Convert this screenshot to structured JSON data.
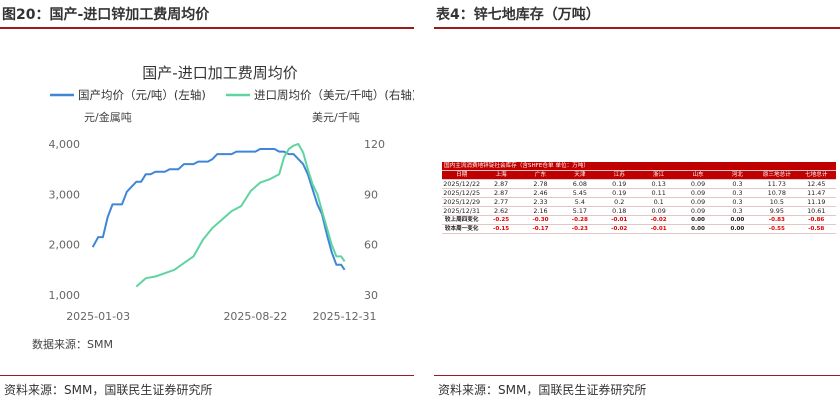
{
  "left_panel": {
    "title": "图20：国产-进口锌加工费周均价",
    "source": "资料来源：SMM，国联民生证券研究所"
  },
  "right_panel": {
    "title": "表4：锌七地库存（万吨）",
    "source": "资料来源：SMM，国联民生证券研究所"
  },
  "colors": {
    "rule": "#9c1c1c",
    "series_domestic": "#3f86d8",
    "series_import": "#5fd4a0",
    "table_header": "#c00000",
    "negative": "#e00000",
    "positive": "#19a55a"
  },
  "chart_data": {
    "type": "line",
    "title": "国产-进口加工费周均价",
    "legend_position": "top",
    "series": [
      {
        "name": "国产均价（元/吨）(左轴)",
        "axis": "left",
        "x": [
          "2024-12-26",
          "2025-01-03",
          "2025-01-10",
          "2025-01-17",
          "2025-01-24",
          "2025-02-07",
          "2025-02-14",
          "2025-02-21",
          "2025-02-28",
          "2025-03-07",
          "2025-03-14",
          "2025-03-21",
          "2025-03-28",
          "2025-04-04",
          "2025-04-11",
          "2025-04-18",
          "2025-04-25",
          "2025-05-01",
          "2025-05-09",
          "2025-05-16",
          "2025-05-23",
          "2025-05-30",
          "2025-06-06",
          "2025-06-13",
          "2025-06-20",
          "2025-06-27",
          "2025-07-04",
          "2025-07-11",
          "2025-07-18",
          "2025-07-25",
          "2025-08-01",
          "2025-08-08",
          "2025-08-15",
          "2025-08-22",
          "2025-08-29",
          "2025-09-05",
          "2025-09-12",
          "2025-09-19",
          "2025-09-26",
          "2025-10-03",
          "2025-10-10",
          "2025-10-17",
          "2025-10-24",
          "2025-10-31",
          "2025-11-07",
          "2025-11-14",
          "2025-11-21",
          "2025-11-28",
          "2025-12-05",
          "2025-12-12",
          "2025-12-19",
          "2025-12-26",
          "2025-12-31"
        ],
        "values": [
          1950,
          2150,
          2150,
          2550,
          2800,
          2800,
          3050,
          3150,
          3250,
          3250,
          3400,
          3400,
          3450,
          3450,
          3450,
          3500,
          3500,
          3500,
          3600,
          3600,
          3600,
          3650,
          3650,
          3650,
          3700,
          3800,
          3800,
          3800,
          3800,
          3850,
          3850,
          3850,
          3850,
          3850,
          3900,
          3900,
          3900,
          3900,
          3850,
          3850,
          3800,
          3800,
          3700,
          3600,
          3400,
          3100,
          2800,
          2600,
          2200,
          1850,
          1600,
          1600,
          1500
        ]
      },
      {
        "name": "进口周均价（美元/千吨）(右轴)",
        "axis": "right",
        "x": [
          "2025-02-28",
          "2025-03-14",
          "2025-03-28",
          "2025-04-11",
          "2025-04-25",
          "2025-05-09",
          "2025-05-23",
          "2025-06-06",
          "2025-06-20",
          "2025-07-04",
          "2025-07-18",
          "2025-08-01",
          "2025-08-15",
          "2025-08-29",
          "2025-09-12",
          "2025-09-26",
          "2025-10-03",
          "2025-10-10",
          "2025-10-17",
          "2025-10-24",
          "2025-10-31",
          "2025-11-07",
          "2025-11-14",
          "2025-11-21",
          "2025-11-28",
          "2025-12-05",
          "2025-12-12",
          "2025-12-19",
          "2025-12-26",
          "2025-12-31"
        ],
        "values": [
          35,
          40,
          41,
          43,
          45,
          49,
          53,
          63,
          70,
          75,
          80,
          83,
          92,
          97,
          99,
          102,
          112,
          117,
          119,
          120,
          115,
          105,
          96,
          90,
          80,
          70,
          60,
          53,
          53,
          50
        ]
      }
    ],
    "x_ticks": [
      "2025-01-03",
      "2025-08-22",
      "2025-12-31"
    ],
    "left_axis": {
      "label": "元/金属吨",
      "ticks": [
        "1,000",
        "2,000",
        "3,000",
        "4,000"
      ],
      "ylim": [
        1000,
        4000
      ]
    },
    "right_axis": {
      "label": "美元/千吨",
      "ticks": [
        "30",
        "60",
        "90",
        "120"
      ],
      "ylim": [
        30,
        120
      ]
    },
    "annotation": "数据来源：SMM"
  },
  "inventory_table": {
    "title": "国内主流消费地锌锭社会库存（含SHFE仓单 单位：万吨）",
    "headers": [
      "日期",
      "上海",
      "广东",
      "天津",
      "江苏",
      "浙江",
      "山东",
      "河北",
      "原三地总计",
      "七地总计"
    ],
    "rows": [
      [
        "2025/12/22",
        "2.87",
        "2.78",
        "6.08",
        "0.19",
        "0.13",
        "0.09",
        "0.3",
        "11.73",
        "12.45"
      ],
      [
        "2025/12/25",
        "2.87",
        "2.46",
        "5.45",
        "0.19",
        "0.11",
        "0.09",
        "0.3",
        "10.78",
        "11.47"
      ],
      [
        "2025/12/29",
        "2.77",
        "2.33",
        "5.4",
        "0.2",
        "0.1",
        "0.09",
        "0.3",
        "10.5",
        "11.19"
      ],
      [
        "2025/12/31",
        "2.62",
        "2.16",
        "5.17",
        "0.18",
        "0.09",
        "0.09",
        "0.3",
        "9.95",
        "10.61"
      ]
    ],
    "change_rows": [
      [
        "较上周四变化",
        "-0.25",
        "-0.30",
        "-0.28",
        "-0.01",
        "-0.02",
        "0.00",
        "0.00",
        "-0.83",
        "-0.86"
      ],
      [
        "较本周一变化",
        "-0.15",
        "-0.17",
        "-0.23",
        "-0.02",
        "-0.01",
        "0.00",
        "0.00",
        "-0.55",
        "-0.58"
      ]
    ]
  }
}
